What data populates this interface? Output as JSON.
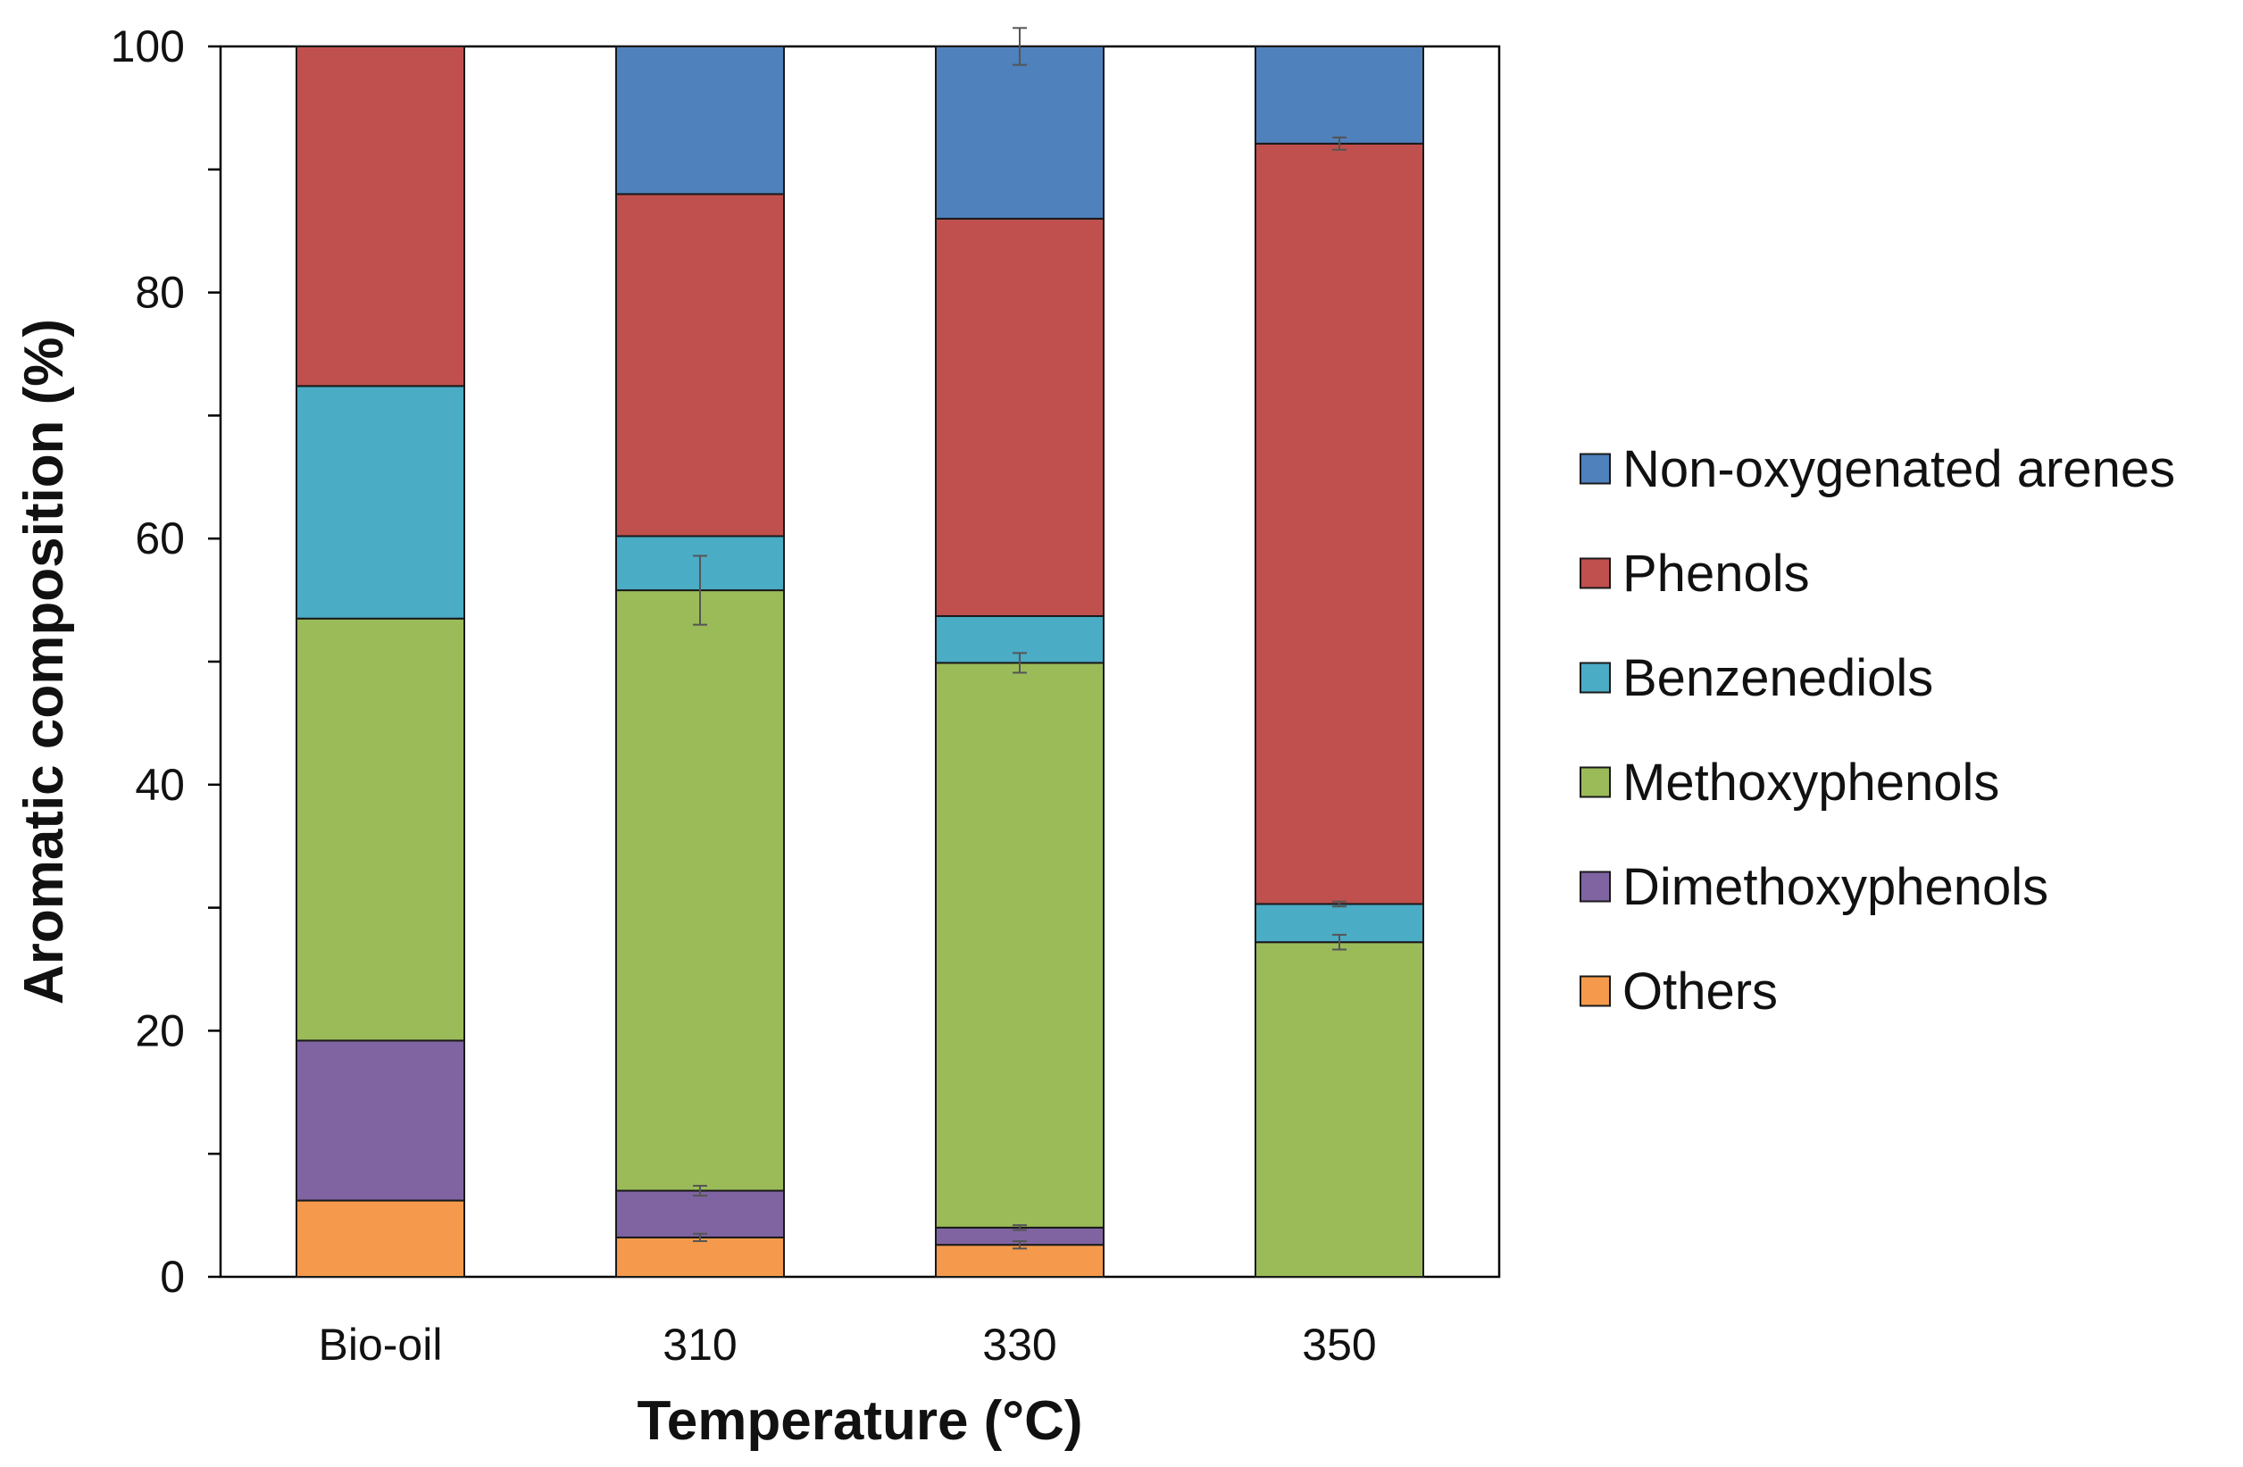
{
  "chart_data": {
    "type": "bar",
    "stacked": true,
    "categories": [
      "Bio-oil",
      "310",
      "330",
      "350"
    ],
    "xlabel": "Temperature (°C)",
    "ylabel": "Aromatic composition (%)",
    "ylim": [
      0,
      100
    ],
    "yticks": [
      0,
      20,
      40,
      60,
      80,
      100
    ],
    "legend_position": "right",
    "series": [
      {
        "name": "Others",
        "color": "#F59A4C",
        "values": [
          6.2,
          3.2,
          2.6,
          0
        ],
        "errors": [
          0,
          0.3,
          0.3,
          0
        ]
      },
      {
        "name": "Dimethoxyphenols",
        "color": "#8064A2",
        "values": [
          13.0,
          3.8,
          1.4,
          0
        ],
        "errors": [
          0,
          0.4,
          0.2,
          0
        ]
      },
      {
        "name": "Methoxyphenols",
        "color": "#9BBB59",
        "values": [
          34.3,
          48.8,
          45.9,
          27.2
        ],
        "errors": [
          0,
          2.8,
          0.8,
          0.6
        ]
      },
      {
        "name": "Benzenediols",
        "color": "#4BACC6",
        "values": [
          18.9,
          4.4,
          3.8,
          3.1
        ],
        "errors": [
          0,
          0,
          0,
          0.2
        ]
      },
      {
        "name": "Phenols",
        "color": "#C0504D",
        "values": [
          27.6,
          27.8,
          32.3,
          61.8
        ],
        "errors": [
          0,
          0,
          0,
          0.5
        ]
      },
      {
        "name": "Non-oxygenated arenes",
        "color": "#4F81BD",
        "values": [
          0,
          12.0,
          14.0,
          7.9
        ],
        "errors": [
          0,
          0,
          1.5,
          0
        ]
      }
    ]
  }
}
